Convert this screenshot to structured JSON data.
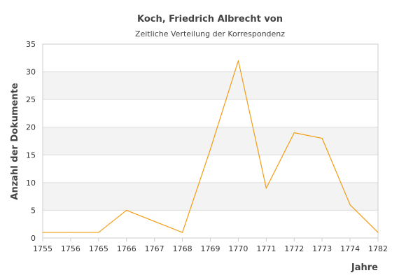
{
  "header": {
    "title": "Koch, Friedrich Albrecht von",
    "subtitle": "Zeitliche Verteilung der Korrespondenz"
  },
  "chart_data": {
    "type": "line",
    "title": "Koch, Friedrich Albrecht von",
    "subtitle": "Zeitliche Verteilung der Korrespondenz",
    "xlabel": "Jahre",
    "ylabel": "Anzahl der Dokumente",
    "categories": [
      "1755",
      "1756",
      "1765",
      "1766",
      "1767",
      "1768",
      "1769",
      "1770",
      "1771",
      "1772",
      "1773",
      "1774",
      "1782"
    ],
    "series": [
      {
        "values": [
          1,
          1,
          1,
          5,
          3,
          1,
          16,
          32,
          9,
          19,
          18,
          6,
          1
        ]
      }
    ],
    "ylim": [
      0,
      35
    ],
    "yticks": [
      0,
      5,
      10,
      15,
      20,
      25,
      30,
      35
    ],
    "grid": true,
    "legend": "none"
  },
  "colors": {
    "line": "#f39c12",
    "band": "#f3f3f3",
    "gridline": "#dddddd",
    "axis": "#cccccc"
  }
}
